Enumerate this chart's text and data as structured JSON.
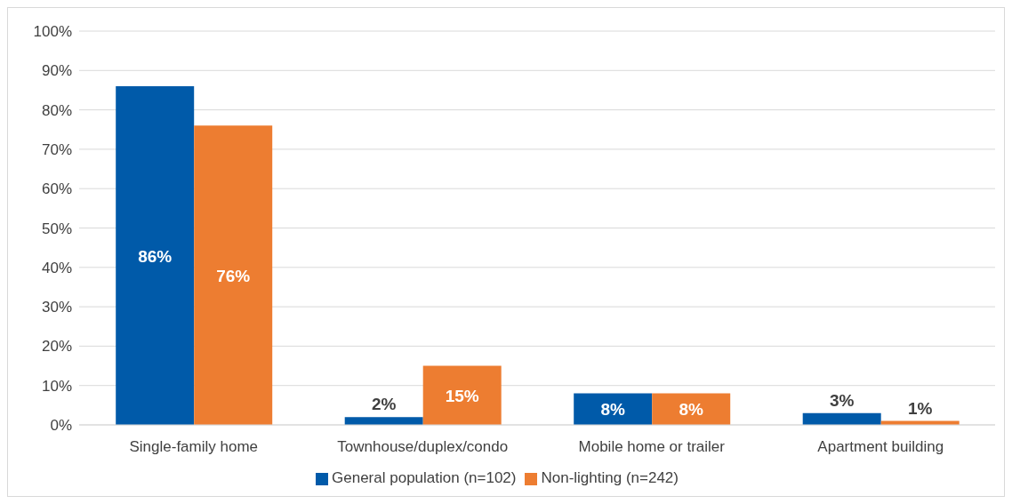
{
  "chart_data": {
    "type": "bar",
    "categories": [
      "Single-family home",
      "Townhouse/duplex/condo",
      "Mobile home or trailer",
      "Apartment building"
    ],
    "series": [
      {
        "name": "General population (n=102)",
        "color": "#005aa9",
        "values": [
          86,
          2,
          8,
          3
        ],
        "value_labels": [
          "86%",
          "2%",
          "8%",
          "3%"
        ]
      },
      {
        "name": "Non-lighting (n=242)",
        "color": "#ed7d31",
        "values": [
          76,
          15,
          8,
          1
        ],
        "value_labels": [
          "76%",
          "15%",
          "8%",
          "1%"
        ]
      }
    ],
    "ylim": [
      0,
      100
    ],
    "yticks": [
      {
        "value": 0,
        "label": "0%"
      },
      {
        "value": 10,
        "label": "10%"
      },
      {
        "value": 20,
        "label": "20%"
      },
      {
        "value": 30,
        "label": "30%"
      },
      {
        "value": 40,
        "label": "40%"
      },
      {
        "value": 50,
        "label": "50%"
      },
      {
        "value": 60,
        "label": "60%"
      },
      {
        "value": 70,
        "label": "70%"
      },
      {
        "value": 80,
        "label": "80%"
      },
      {
        "value": 90,
        "label": "90%"
      },
      {
        "value": 100,
        "label": "100%"
      }
    ],
    "grid": "y",
    "legend": "bottom"
  }
}
